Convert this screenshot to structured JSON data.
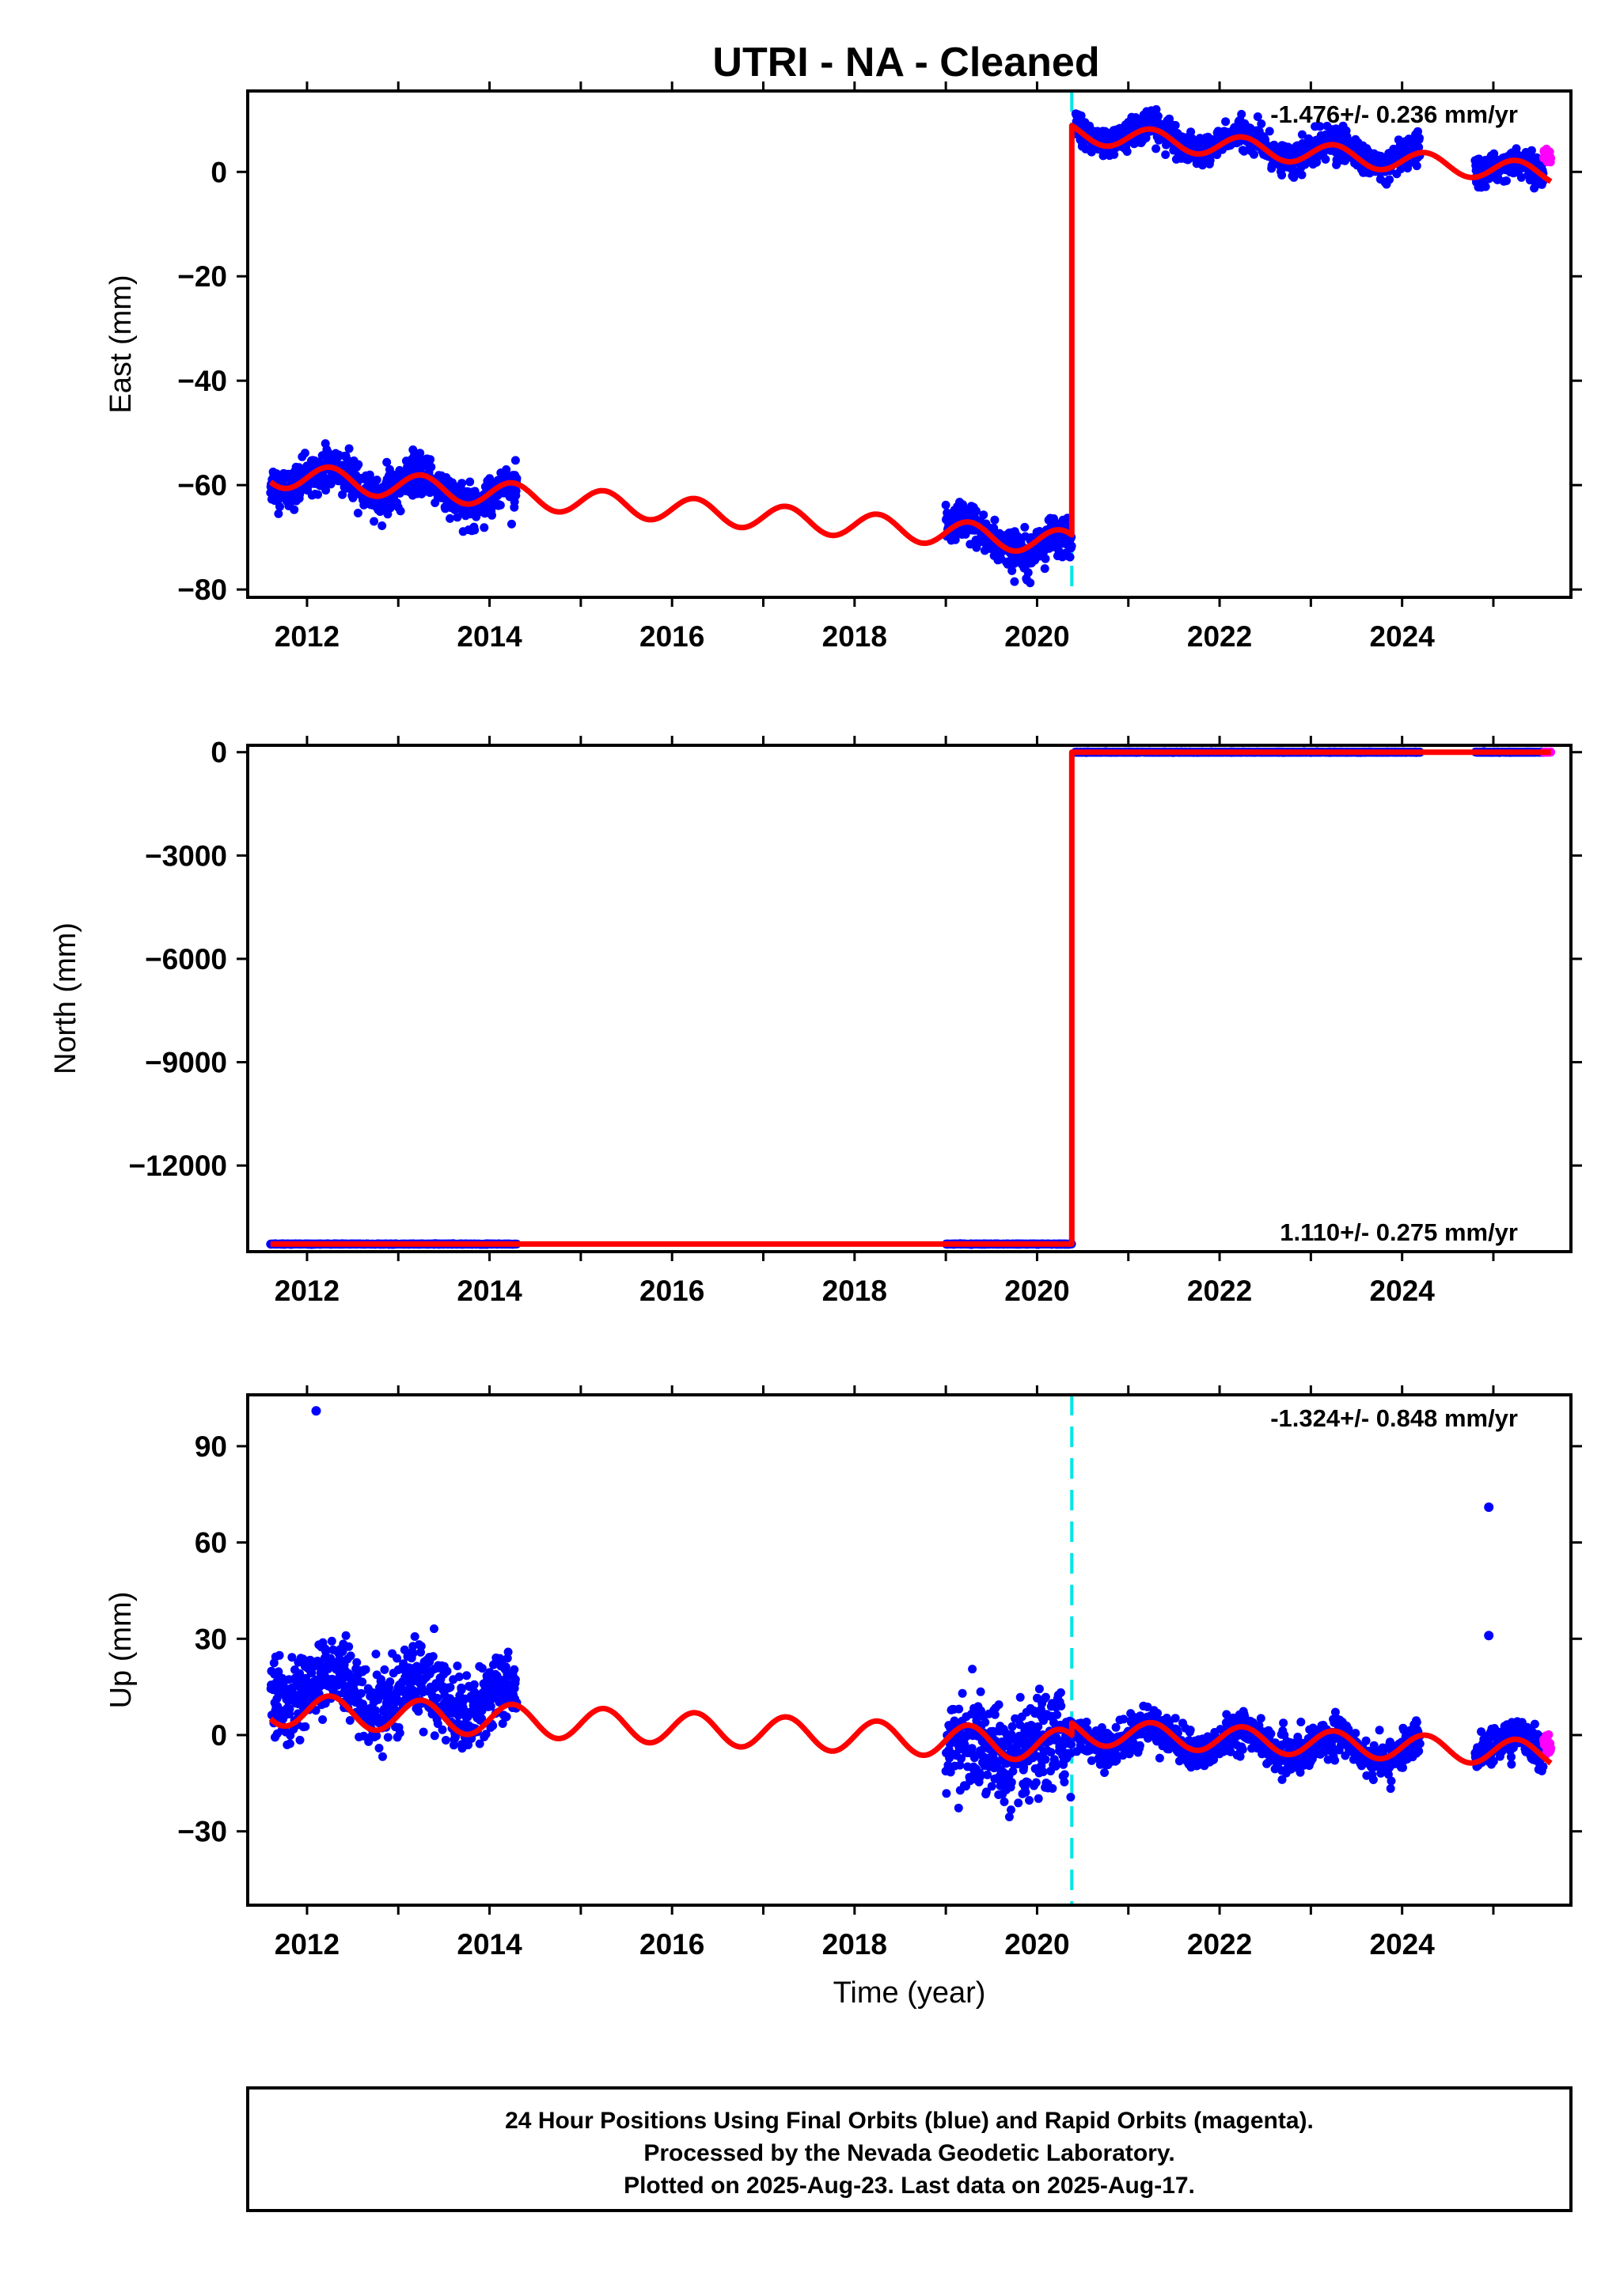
{
  "title": "UTRI  - NA - Cleaned",
  "colors": {
    "final": "#0000ff",
    "rapid": "#ff00ff",
    "model": "#ff0000",
    "offset": "#00e5e5"
  },
  "x_ticks": [
    "2012",
    "2014",
    "2016",
    "2018",
    "2020",
    "2022",
    "2024"
  ],
  "footer": {
    "line1": "24 Hour Positions Using Final Orbits (blue) and Rapid Orbits (magenta).",
    "line2": "Processed by the Nevada Geodetic Laboratory.",
    "line3": "Plotted on 2025-Aug-23. Last data on 2025-Aug-17."
  },
  "chart_data": [
    {
      "type": "scatter",
      "name": "east",
      "ylabel": "East (mm)",
      "xlabel": "",
      "rate": "-1.476+/- 0.236 mm/yr",
      "xlim": [
        2011.35,
        2025.85
      ],
      "ylim": [
        -81.5,
        15.5
      ],
      "y_ticks": [
        0,
        -20,
        -40,
        -60,
        -80
      ],
      "offset_line_x": 2020.38,
      "series": [
        {
          "name": "",
          "segments": [
            {
              "x0": 2011.6,
              "x1": 2014.3,
              "base0": -58,
              "slope": -1.6,
              "amp": 2.5,
              "noise": 3.5
            },
            {
              "x0": 2019.0,
              "x1": 2020.38,
              "base0": -69,
              "slope": -2.5,
              "amp": 2,
              "noise": 3.5
            },
            {
              "x0": 2020.42,
              "x1": 2024.2,
              "base0": 8,
              "slope": -1.5,
              "amp": 2,
              "noise": 2.5
            },
            {
              "x0": 2024.8,
              "x1": 2025.55,
              "base0": 1,
              "slope": -1.5,
              "amp": 1.5,
              "noise": 2.5
            }
          ]
        },
        {
          "name": "",
          "segments": [
            {
              "x0": 2025.55,
              "x1": 2025.63,
              "base0": 3,
              "slope": 0,
              "amp": 0,
              "noise": 2
            }
          ]
        }
      ],
      "model": {
        "segments": [
          {
            "x0": 2011.6,
            "x1": 2020.38,
            "base0": -58,
            "slope": -1.5,
            "amp": 2.4
          },
          {
            "x0": 2020.38,
            "x1": 2025.63,
            "base0": 7.5,
            "slope": -1.5,
            "amp": 2.0
          }
        ]
      }
    },
    {
      "type": "scatter",
      "name": "north",
      "ylabel": "North (mm)",
      "xlabel": "",
      "rate": "1.110+/- 0.275 mm/yr",
      "xlim": [
        2011.35,
        2025.85
      ],
      "ylim": [
        -14500,
        200
      ],
      "y_ticks": [
        0,
        -3000,
        -6000,
        -9000,
        -12000
      ],
      "offset_line_x": null,
      "series": [
        {
          "name": "",
          "segments": [
            {
              "x0": 2011.6,
              "x1": 2014.3,
              "base0": -14280,
              "slope": 0,
              "amp": 0,
              "noise": 8
            },
            {
              "x0": 2019.0,
              "x1": 2020.38,
              "base0": -14280,
              "slope": 0,
              "amp": 0,
              "noise": 8
            },
            {
              "x0": 2020.42,
              "x1": 2024.2,
              "base0": 0,
              "slope": 0,
              "amp": 0,
              "noise": 8
            },
            {
              "x0": 2024.8,
              "x1": 2025.55,
              "base0": 0,
              "slope": 0,
              "amp": 0,
              "noise": 8
            }
          ]
        },
        {
          "name": "",
          "segments": [
            {
              "x0": 2025.55,
              "x1": 2025.63,
              "base0": 0,
              "slope": 0,
              "amp": 0,
              "noise": 8
            }
          ]
        }
      ],
      "model": {
        "segments": [
          {
            "x0": 2011.6,
            "x1": 2020.38,
            "base0": -14280,
            "slope": 0,
            "amp": 0
          },
          {
            "x0": 2020.38,
            "x1": 2025.63,
            "base0": 0,
            "slope": 0,
            "amp": 0
          }
        ]
      }
    },
    {
      "type": "scatter",
      "name": "up",
      "ylabel": "Up (mm)",
      "xlabel": "Time (year)",
      "rate": "-1.324+/- 0.848 mm/yr",
      "xlim": [
        2011.35,
        2025.85
      ],
      "ylim": [
        -53,
        106
      ],
      "y_ticks": [
        90,
        60,
        30,
        0,
        -30
      ],
      "offset_line_x": 2020.38,
      "series": [
        {
          "name": "",
          "segments": [
            {
              "x0": 2011.6,
              "x1": 2014.3,
              "base0": 15,
              "slope": -1.5,
              "amp": 5,
              "noise": 11
            },
            {
              "x0": 2019.0,
              "x1": 2020.38,
              "base0": -5,
              "slope": 0,
              "amp": 4,
              "noise": 13
            },
            {
              "x0": 2020.42,
              "x1": 2024.2,
              "base0": 0,
              "slope": -1.3,
              "amp": 4,
              "noise": 5
            },
            {
              "x0": 2024.8,
              "x1": 2025.55,
              "base0": -3,
              "slope": -1.3,
              "amp": 3,
              "noise": 5
            }
          ]
        },
        {
          "name": "",
          "segments": [
            {
              "x0": 2025.55,
              "x1": 2025.63,
              "base0": -3,
              "slope": 0,
              "amp": 0,
              "noise": 4
            }
          ]
        }
      ],
      "outliers": [
        {
          "x": 2012.1,
          "y": 101
        },
        {
          "x": 2024.95,
          "y": 71
        },
        {
          "x": 2024.95,
          "y": 31
        }
      ],
      "model": {
        "segments": [
          {
            "x0": 2011.6,
            "x1": 2020.38,
            "base0": 8,
            "slope": -1.3,
            "amp": 5
          },
          {
            "x0": 2020.38,
            "x1": 2025.63,
            "base0": 1,
            "slope": -1.3,
            "amp": 4
          }
        ]
      }
    }
  ]
}
